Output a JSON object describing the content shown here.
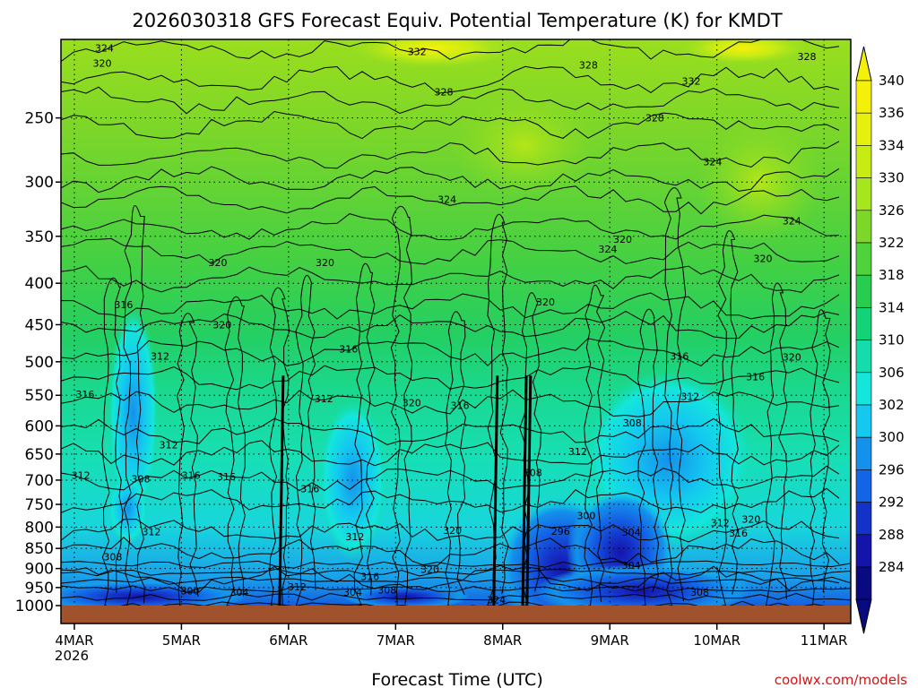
{
  "chart_data": {
    "type": "heatmap",
    "title": "2026030318 GFS Forecast Equiv. Potential Temperature (K) for KMDT",
    "xlabel": "Forecast Time (UTC)",
    "ylabel": "",
    "credit": "coolwx.com/models",
    "y_scale": "log-pressure",
    "y_range_hpa": [
      1000,
      200
    ],
    "y_ticks": [
      "250",
      "300",
      "350",
      "400",
      "450",
      "500",
      "550",
      "600",
      "650",
      "700",
      "750",
      "800",
      "850",
      "900",
      "950",
      "1000"
    ],
    "y_tick_values": [
      250,
      300,
      350,
      400,
      450,
      500,
      550,
      600,
      650,
      700,
      750,
      800,
      850,
      900,
      950,
      1000
    ],
    "x_ticks": [
      "4MAR",
      "5MAR",
      "6MAR",
      "7MAR",
      "8MAR",
      "9MAR",
      "10MAR",
      "11MAR"
    ],
    "x_year": "2026",
    "x_range_days": [
      -0.125,
      7.25
    ],
    "colorbar": {
      "labels": [
        "340",
        "336",
        "334",
        "330",
        "326",
        "322",
        "318",
        "314",
        "310",
        "306",
        "302",
        "300",
        "296",
        "292",
        "288",
        "284"
      ],
      "colors": [
        "#f5f00a",
        "#e6f00f",
        "#c8eb14",
        "#a5e61e",
        "#7dd728",
        "#50d23c",
        "#28cd50",
        "#14d278",
        "#14dcaa",
        "#14e6dc",
        "#14c8f0",
        "#1491eb",
        "#1464e6",
        "#1432c8",
        "#1414aa",
        "#0a0a80"
      ]
    },
    "contour_labels": [
      {
        "t": "324",
        "d": 0.28,
        "p": 205
      },
      {
        "t": "320",
        "d": 0.26,
        "p": 214
      },
      {
        "t": "332",
        "d": 3.2,
        "p": 207
      },
      {
        "t": "328",
        "d": 3.45,
        "p": 232
      },
      {
        "t": "328",
        "d": 4.8,
        "p": 215
      },
      {
        "t": "332",
        "d": 5.76,
        "p": 225
      },
      {
        "t": "328",
        "d": 6.84,
        "p": 210
      },
      {
        "t": "328",
        "d": 5.42,
        "p": 250
      },
      {
        "t": "324",
        "d": 5.96,
        "p": 283
      },
      {
        "t": "324",
        "d": 3.48,
        "p": 315
      },
      {
        "t": "320",
        "d": 5.12,
        "p": 353
      },
      {
        "t": "324",
        "d": 4.98,
        "p": 363
      },
      {
        "t": "324",
        "d": 6.7,
        "p": 335
      },
      {
        "t": "320",
        "d": 6.43,
        "p": 373
      },
      {
        "t": "320",
        "d": 1.34,
        "p": 377
      },
      {
        "t": "320",
        "d": 2.34,
        "p": 377
      },
      {
        "t": "316",
        "d": 0.46,
        "p": 425
      },
      {
        "t": "320",
        "d": 4.4,
        "p": 422
      },
      {
        "t": "320",
        "d": 1.38,
        "p": 450
      },
      {
        "t": "316",
        "d": 2.56,
        "p": 482
      },
      {
        "t": "312",
        "d": 0.8,
        "p": 492
      },
      {
        "t": "316",
        "d": 5.65,
        "p": 492
      },
      {
        "t": "320",
        "d": 6.7,
        "p": 493
      },
      {
        "t": "316",
        "d": 6.36,
        "p": 522
      },
      {
        "t": "316",
        "d": 0.1,
        "p": 548
      },
      {
        "t": "312",
        "d": 2.33,
        "p": 555
      },
      {
        "t": "320",
        "d": 3.15,
        "p": 562
      },
      {
        "t": "316",
        "d": 3.6,
        "p": 566
      },
      {
        "t": "312",
        "d": 5.75,
        "p": 552
      },
      {
        "t": "308",
        "d": 5.21,
        "p": 595
      },
      {
        "t": "312",
        "d": 0.88,
        "p": 633
      },
      {
        "t": "312",
        "d": 4.7,
        "p": 645
      },
      {
        "t": "312",
        "d": 0.06,
        "p": 690
      },
      {
        "t": "316",
        "d": 1.09,
        "p": 690
      },
      {
        "t": "316",
        "d": 1.42,
        "p": 693
      },
      {
        "t": "308",
        "d": 0.62,
        "p": 697
      },
      {
        "t": "308",
        "d": 4.28,
        "p": 685
      },
      {
        "t": "316",
        "d": 2.2,
        "p": 717
      },
      {
        "t": "312",
        "d": 0.72,
        "p": 811
      },
      {
        "t": "320",
        "d": 3.53,
        "p": 807
      },
      {
        "t": "300",
        "d": 4.78,
        "p": 774
      },
      {
        "t": "296",
        "d": 4.54,
        "p": 809
      },
      {
        "t": "304",
        "d": 5.2,
        "p": 812
      },
      {
        "t": "312",
        "d": 6.03,
        "p": 790
      },
      {
        "t": "320",
        "d": 6.32,
        "p": 782
      },
      {
        "t": "316",
        "d": 6.2,
        "p": 814
      },
      {
        "t": "312",
        "d": 2.62,
        "p": 822
      },
      {
        "t": "308",
        "d": 0.36,
        "p": 870
      },
      {
        "t": "304",
        "d": 5.2,
        "p": 892
      },
      {
        "t": "320",
        "d": 3.32,
        "p": 902
      },
      {
        "t": "316",
        "d": 2.76,
        "p": 921
      },
      {
        "t": "312",
        "d": 2.08,
        "p": 948
      },
      {
        "t": "308",
        "d": 2.92,
        "p": 957
      },
      {
        "t": "304",
        "d": 2.6,
        "p": 963
      },
      {
        "t": "300",
        "d": 1.08,
        "p": 959
      },
      {
        "t": "304",
        "d": 1.54,
        "p": 962
      },
      {
        "t": "308",
        "d": 5.84,
        "p": 963
      },
      {
        "t": "324",
        "d": 3.94,
        "p": 984
      }
    ]
  }
}
